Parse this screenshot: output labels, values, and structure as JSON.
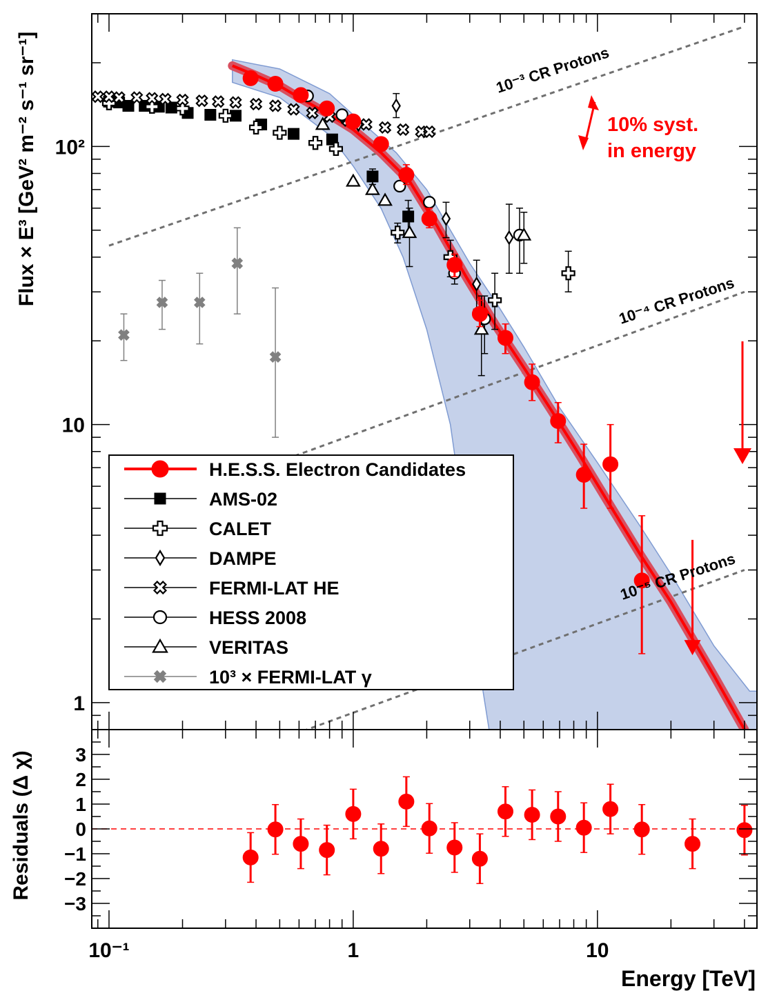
{
  "chart_data": [
    {
      "panel": "top",
      "type": "scatter",
      "x_scale": "log",
      "y_scale": "log",
      "xlim": [
        0.085,
        45
      ],
      "ylim": [
        0.8,
        300
      ],
      "ylabel": "Flux × E³ [GeV² m⁻² s⁻¹ sr⁻¹]",
      "yticks": [
        {
          "value": 1,
          "label": "1"
        },
        {
          "value": 10,
          "label": "10"
        },
        {
          "value": 100,
          "label": "10²"
        }
      ],
      "annotations": {
        "syst": [
          "10% syst.",
          "in energy"
        ],
        "protons": [
          {
            "label": "10⁻³ CR Protons"
          },
          {
            "label": "10⁻⁴ CR Protons"
          },
          {
            "label": "10⁻⁵ CR Protons"
          }
        ]
      },
      "fit_curve": {
        "x": [
          0.32,
          0.4,
          0.5,
          0.6,
          0.8,
          1.0,
          1.3,
          1.7,
          2.2,
          2.9,
          3.8,
          5.0,
          6.5,
          8.5,
          11,
          15,
          20,
          30,
          40
        ],
        "y": [
          195,
          180,
          165,
          150,
          130,
          115,
          95,
          75,
          52,
          34,
          23,
          16,
          11.2,
          7.7,
          5.3,
          3.4,
          2.3,
          1.25,
          0.8
        ]
      },
      "syst_band": {
        "upper": {
          "x": [
            0.32,
            0.5,
            0.8,
            1.0,
            1.5,
            2.0,
            3.0,
            4.0,
            5.0,
            7.0,
            10,
            15,
            20,
            30,
            42
          ],
          "y": [
            205,
            190,
            155,
            130,
            95,
            70,
            38,
            26,
            19,
            11.5,
            7.3,
            4.3,
            2.9,
            1.6,
            1.1
          ]
        },
        "lower": {
          "x": [
            0.32,
            0.5,
            0.8,
            1.0,
            1.3,
            1.6,
            2.0,
            2.5,
            2.9,
            3.2,
            3.4,
            3.6
          ],
          "y": [
            170,
            150,
            110,
            85,
            60,
            40,
            22,
            10,
            4.0,
            1.8,
            1.1,
            0.8
          ]
        }
      },
      "proton_lines": [
        {
          "x": [
            0.1,
            40
          ],
          "y": [
            44,
            270
          ]
        },
        {
          "x": [
            0.1,
            40
          ],
          "y": [
            4.4,
            30
          ]
        },
        {
          "x": [
            0.1,
            40
          ],
          "y": [
            0.44,
            3.0
          ]
        }
      ],
      "series": [
        {
          "name": "H.E.S.S. Electron Candidates",
          "marker": "circle-filled",
          "color": "#ff0000",
          "points": [
            {
              "x": 0.38,
              "y": 176
            },
            {
              "x": 0.48,
              "y": 168
            },
            {
              "x": 0.61,
              "y": 153
            },
            {
              "x": 0.78,
              "y": 137
            },
            {
              "x": 1.0,
              "y": 123
            },
            {
              "x": 1.3,
              "y": 102
            },
            {
              "x": 1.65,
              "y": 79,
              "err": [
                73,
                86
              ]
            },
            {
              "x": 2.05,
              "y": 55,
              "err": [
                51,
                60
              ]
            },
            {
              "x": 2.6,
              "y": 37.5,
              "err": [
                34,
                41
              ]
            },
            {
              "x": 3.3,
              "y": 25,
              "err": [
                22.5,
                28
              ]
            },
            {
              "x": 4.2,
              "y": 20.5,
              "err": [
                18,
                23
              ]
            },
            {
              "x": 5.4,
              "y": 14.2,
              "err": [
                12.2,
                16.5
              ]
            },
            {
              "x": 6.9,
              "y": 10.3,
              "err": [
                8.6,
                12
              ]
            },
            {
              "x": 8.8,
              "y": 6.6,
              "err": [
                5.0,
                8.5
              ]
            },
            {
              "x": 11.3,
              "y": 7.2,
              "err": [
                5.0,
                10.0
              ]
            },
            {
              "x": 15.2,
              "y": 2.75,
              "err": [
                1.5,
                4.7
              ]
            }
          ],
          "upper_limit": {
            "x": 24.5,
            "y": 1.55,
            "err": [
              1.55,
              3.85
            ]
          }
        },
        {
          "name": "AMS-02",
          "marker": "square-filled",
          "color": "#000000",
          "points": [
            {
              "x": 0.1,
              "y": 145
            },
            {
              "x": 0.11,
              "y": 144
            },
            {
              "x": 0.12,
              "y": 140
            },
            {
              "x": 0.14,
              "y": 140
            },
            {
              "x": 0.16,
              "y": 139
            },
            {
              "x": 0.18,
              "y": 138
            },
            {
              "x": 0.21,
              "y": 132
            },
            {
              "x": 0.26,
              "y": 130
            },
            {
              "x": 0.33,
              "y": 129
            },
            {
              "x": 0.42,
              "y": 120
            },
            {
              "x": 0.57,
              "y": 111
            },
            {
              "x": 0.82,
              "y": 106
            },
            {
              "x": 1.2,
              "y": 78,
              "err": [
                73,
                83
              ]
            },
            {
              "x": 1.68,
              "y": 56,
              "err": [
                48,
                64
              ]
            }
          ]
        },
        {
          "name": "CALET",
          "marker": "cross-open",
          "color": "#000000",
          "points": [
            {
              "x": 0.1,
              "y": 143
            },
            {
              "x": 0.15,
              "y": 139
            },
            {
              "x": 0.2,
              "y": 137
            },
            {
              "x": 0.3,
              "y": 129
            },
            {
              "x": 0.4,
              "y": 117
            },
            {
              "x": 0.5,
              "y": 112
            },
            {
              "x": 0.7,
              "y": 103
            },
            {
              "x": 0.85,
              "y": 98
            },
            {
              "x": 1.52,
              "y": 49,
              "err": [
                45,
                53
              ]
            },
            {
              "x": 2.5,
              "y": 40,
              "err": [
                34,
                46
              ]
            },
            {
              "x": 3.8,
              "y": 28,
              "err": [
                22,
                35
              ]
            },
            {
              "x": 7.6,
              "y": 35,
              "err": [
                30,
                42
              ]
            }
          ]
        },
        {
          "name": "DAMPE",
          "marker": "diamond-open",
          "color": "#000000",
          "points": [
            {
              "x": 0.9,
              "y": 128
            },
            {
              "x": 1.05,
              "y": 120
            },
            {
              "x": 1.5,
              "y": 140,
              "err": [
                127,
                155
              ]
            },
            {
              "x": 2.4,
              "y": 55,
              "err": [
                47,
                63
              ]
            },
            {
              "x": 3.2,
              "y": 32,
              "err": [
                26,
                39
              ]
            },
            {
              "x": 4.35,
              "y": 47,
              "err": [
                35,
                62
              ]
            }
          ]
        },
        {
          "name": "FERMI-LAT HE",
          "marker": "x-open",
          "color": "#000000",
          "points": [
            {
              "x": 0.09,
              "y": 151
            },
            {
              "x": 0.1,
              "y": 151
            },
            {
              "x": 0.11,
              "y": 150
            },
            {
              "x": 0.13,
              "y": 150
            },
            {
              "x": 0.15,
              "y": 149
            },
            {
              "x": 0.17,
              "y": 148
            },
            {
              "x": 0.2,
              "y": 147
            },
            {
              "x": 0.24,
              "y": 146
            },
            {
              "x": 0.28,
              "y": 145
            },
            {
              "x": 0.33,
              "y": 144
            },
            {
              "x": 0.4,
              "y": 142
            },
            {
              "x": 0.48,
              "y": 140
            },
            {
              "x": 0.57,
              "y": 136
            },
            {
              "x": 0.68,
              "y": 132
            },
            {
              "x": 0.8,
              "y": 128
            },
            {
              "x": 0.95,
              "y": 124
            },
            {
              "x": 1.13,
              "y": 120
            },
            {
              "x": 1.35,
              "y": 117
            },
            {
              "x": 1.6,
              "y": 115
            },
            {
              "x": 1.9,
              "y": 113
            },
            {
              "x": 2.05,
              "y": 113
            }
          ]
        },
        {
          "name": "HESS 2008",
          "marker": "circle-open",
          "color": "#000000",
          "points": [
            {
              "x": 0.65,
              "y": 152
            },
            {
              "x": 0.9,
              "y": 130
            },
            {
              "x": 1.55,
              "y": 72
            },
            {
              "x": 2.05,
              "y": 63
            },
            {
              "x": 2.6,
              "y": 35,
              "err": [
                32,
                39
              ]
            },
            {
              "x": 3.45,
              "y": 24,
              "err": [
                18,
                29
              ]
            },
            {
              "x": 4.8,
              "y": 48,
              "err": [
                35,
                60
              ]
            }
          ]
        },
        {
          "name": "VERITAS",
          "marker": "triangle-open",
          "color": "#000000",
          "points": [
            {
              "x": 0.75,
              "y": 120
            },
            {
              "x": 1.0,
              "y": 75
            },
            {
              "x": 1.2,
              "y": 70
            },
            {
              "x": 1.35,
              "y": 64
            },
            {
              "x": 1.7,
              "y": 49,
              "err": [
                37,
                60
              ]
            },
            {
              "x": 3.35,
              "y": 22,
              "err": [
                15,
                29
              ]
            },
            {
              "x": 5.0,
              "y": 48,
              "err": [
                38,
                58
              ]
            }
          ]
        },
        {
          "name": "10³ × FERMI-LAT γ",
          "marker": "x-filled",
          "color": "#808080",
          "points": [
            {
              "x": 0.115,
              "y": 21,
              "err": [
                17,
                25
              ]
            },
            {
              "x": 0.165,
              "y": 27.5,
              "err": [
                22,
                33
              ]
            },
            {
              "x": 0.235,
              "y": 27.5,
              "err": [
                19.5,
                35
              ]
            },
            {
              "x": 0.335,
              "y": 38,
              "err": [
                25,
                51
              ]
            },
            {
              "x": 0.48,
              "y": 17.5,
              "err": [
                9,
                31
              ]
            }
          ]
        }
      ],
      "legend": {
        "placement": "bottom-left",
        "entries": [
          {
            "label": "H.E.S.S. Electron Candidates",
            "marker": "circle-filled",
            "color": "#ff0000"
          },
          {
            "label": "AMS-02",
            "marker": "square-filled",
            "color": "#000000"
          },
          {
            "label": "CALET",
            "marker": "cross-open",
            "color": "#000000"
          },
          {
            "label": "DAMPE",
            "marker": "diamond-open",
            "color": "#000000"
          },
          {
            "label": "FERMI-LAT HE",
            "marker": "x-open",
            "color": "#000000"
          },
          {
            "label": "HESS 2008",
            "marker": "circle-open",
            "color": "#000000"
          },
          {
            "label": "VERITAS",
            "marker": "triangle-open",
            "color": "#000000"
          },
          {
            "label": "10³ × FERMI-LAT γ",
            "marker": "x-filled",
            "color": "#808080"
          }
        ]
      },
      "colors": {
        "hess": "#ff0000",
        "band": "#c5d1ea",
        "band_edge": "#7f9bd2",
        "proton_line": "#707070",
        "gamma": "#808080"
      }
    },
    {
      "panel": "bottom",
      "type": "scatter",
      "x_scale": "log",
      "xlim": [
        0.085,
        45
      ],
      "ylim": [
        -4,
        4
      ],
      "ylabel": "Residuals (Δ χ)",
      "xlabel": "Energy [TeV]",
      "yticks": [
        {
          "value": 3,
          "label": "3"
        },
        {
          "value": 2,
          "label": "2"
        },
        {
          "value": 1,
          "label": "1"
        },
        {
          "value": 0,
          "label": "0"
        },
        {
          "value": -1,
          "label": "−1"
        },
        {
          "value": -2,
          "label": "−2"
        },
        {
          "value": -3,
          "label": "−3"
        }
      ],
      "xticks": [
        {
          "value": 0.1,
          "label": "10⁻¹"
        },
        {
          "value": 1,
          "label": "1"
        },
        {
          "value": 10,
          "label": "10"
        }
      ],
      "series": [
        {
          "name": "H.E.S.S. Electron Candidates",
          "marker": "circle-filled",
          "color": "#ff0000",
          "points": [
            {
              "x": 0.38,
              "y": -1.15
            },
            {
              "x": 0.48,
              "y": -0.02
            },
            {
              "x": 0.61,
              "y": -0.6
            },
            {
              "x": 0.78,
              "y": -0.85
            },
            {
              "x": 1.0,
              "y": 0.6
            },
            {
              "x": 1.3,
              "y": -0.8
            },
            {
              "x": 1.65,
              "y": 1.1
            },
            {
              "x": 2.05,
              "y": 0.02
            },
            {
              "x": 2.6,
              "y": -0.75
            },
            {
              "x": 3.3,
              "y": -1.2
            },
            {
              "x": 4.2,
              "y": 0.7
            },
            {
              "x": 5.4,
              "y": 0.57
            },
            {
              "x": 6.9,
              "y": 0.5
            },
            {
              "x": 8.8,
              "y": 0.05
            },
            {
              "x": 11.3,
              "y": 0.8
            },
            {
              "x": 15.2,
              "y": -0.02
            },
            {
              "x": 24.5,
              "y": -0.6
            },
            {
              "x": 40,
              "y": -0.05
            }
          ],
          "error": 1.0
        }
      ],
      "reference_line": {
        "y": 0,
        "style": "dashed",
        "color": "#ff0000"
      }
    }
  ]
}
